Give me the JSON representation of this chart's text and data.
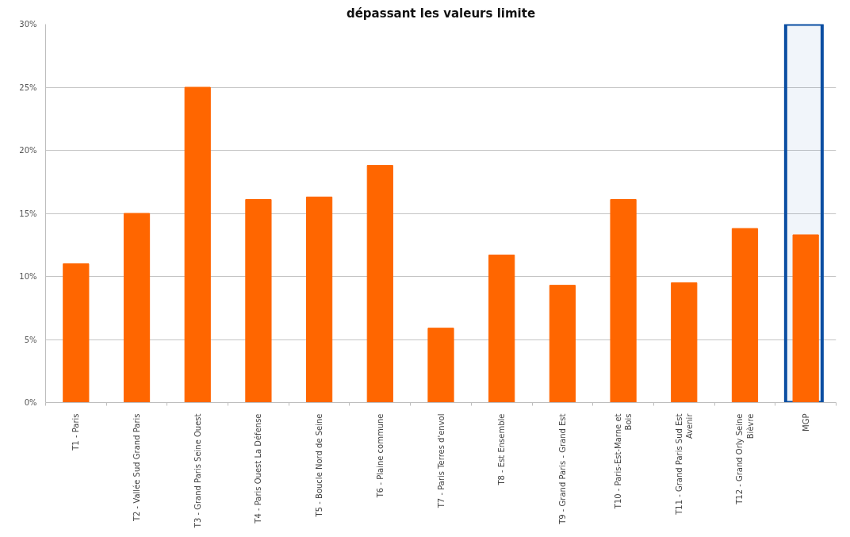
{
  "chart_data": {
    "type": "bar",
    "title": "dépassant les valeurs limite",
    "categories": [
      "T1 - Paris",
      "T2 - Vallée Sud Grand Paris",
      "T3 - Grand Paris Seine Ouest",
      "T4 - Paris Ouest La Défense",
      "T5 - Boucle Nord de Seine",
      "T6 - Plaine commune",
      "T7 - Paris Terres d'envol",
      "T8 - Est Ensemble",
      "T9 - Grand Paris - Grand Est",
      "T10 - Paris-Est-Marne et Bois",
      "T11 - Grand Paris Sud Est Avenir",
      "T12 - Grand Orly Seine Bièvre",
      "MGP"
    ],
    "values": [
      11.0,
      15.0,
      25.0,
      16.1,
      16.3,
      18.8,
      5.9,
      11.7,
      9.3,
      16.1,
      9.5,
      13.8,
      13.3
    ],
    "color": "#ff6600",
    "ylim": [
      0,
      30
    ],
    "yticks": [
      {
        "value": 0,
        "label": "0%"
      },
      {
        "value": 5,
        "label": "5%"
      },
      {
        "value": 10,
        "label": "10%"
      },
      {
        "value": 15,
        "label": "15%"
      },
      {
        "value": 20,
        "label": "20%"
      },
      {
        "value": 25,
        "label": "25%"
      },
      {
        "value": 30,
        "label": "30%"
      }
    ],
    "grid": "y",
    "bands": [
      {
        "axis": "x",
        "from": "MGP",
        "to": "MGP",
        "color": "#0b4ea2"
      }
    ]
  }
}
